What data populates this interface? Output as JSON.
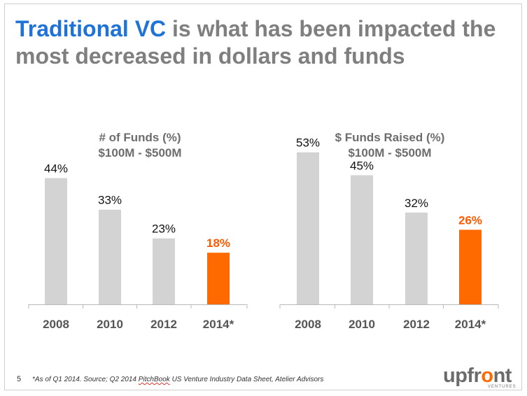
{
  "slide": {
    "title_accent": "Traditional VC",
    "title_rest": " is what has been impacted the most decreased in dollars and funds",
    "page_number": "5",
    "footnote_pre": "*As of Q1 2014.  Source; Q2 2014 ",
    "footnote_underlined": "PitchBook",
    "footnote_post": " US Venture Industry Data Sheet, Atelier Advisors",
    "logo_pre": "upfr",
    "logo_o": "o",
    "logo_post": "nt",
    "logo_sub": "VENTURES",
    "colors": {
      "bar": "#d3d3d3",
      "highlight_bar": "#ff6a00",
      "highlight_label": "#ff5a00",
      "accent": "#1f73d6"
    }
  },
  "chart_data": [
    {
      "type": "bar",
      "title": "# of Funds (%)",
      "subtitle": "$100M - $500M",
      "categories": [
        "2008",
        "2010",
        "2012",
        "2014*"
      ],
      "values": [
        44,
        33,
        23,
        18
      ],
      "labels": [
        "44%",
        "33%",
        "23%",
        "18%"
      ],
      "highlight_index": 3
    },
    {
      "type": "bar",
      "title": "$ Funds Raised (%)",
      "subtitle": "$100M - $500M",
      "categories": [
        "2008",
        "2010",
        "2012",
        "2014*"
      ],
      "values": [
        53,
        45,
        32,
        26
      ],
      "labels": [
        "53%",
        "45%",
        "32%",
        "26%"
      ],
      "highlight_index": 3
    }
  ]
}
